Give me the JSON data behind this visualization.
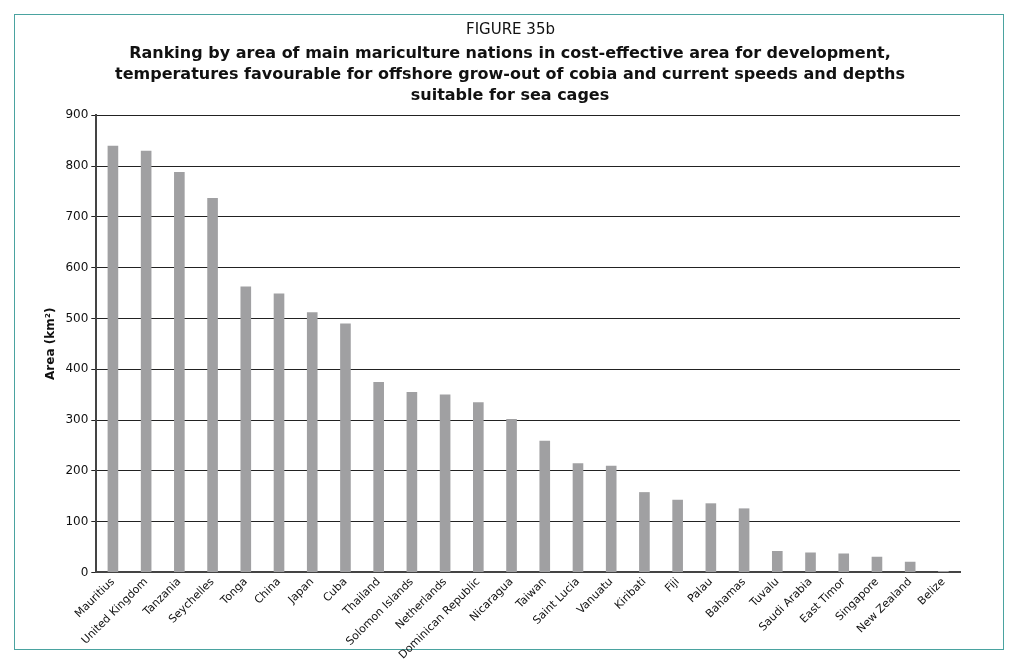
{
  "chart_data": {
    "type": "bar",
    "title": "FIGURE 35b",
    "subtitle": "Ranking by area of main mariculture nations in cost-effective area for development, temperatures favourable for offshore grow-out of cobia and current speeds and depths suitable for  sea cages",
    "ylabel": "Area (km²)",
    "categories": [
      "Mauritius",
      "United Kingdom",
      "Tanzania",
      "Seychelles",
      "Tonga",
      "China",
      "Japan",
      "Cuba",
      "Thailand",
      "Solomon Islands",
      "Netherlands",
      "Dominican Republic",
      "Nicaragua",
      "Taiwan",
      "Saint Lucia",
      "Vanuatu",
      "Kiribati",
      "Fiji",
      "Palau",
      "Bahamas",
      "Tuvalu",
      "Saudi Arabia",
      "East Timor",
      "Singapore",
      "New Zealand",
      "Belize"
    ],
    "values": [
      840,
      830,
      788,
      737,
      563,
      549,
      512,
      490,
      375,
      355,
      350,
      335,
      302,
      259,
      215,
      210,
      158,
      143,
      136,
      126,
      42,
      39,
      37,
      31,
      21,
      3
    ],
    "color": "#a0a0a2",
    "ylim": [
      0,
      900
    ],
    "yticks": [
      0,
      100,
      200,
      300,
      400,
      500,
      600,
      700,
      800,
      900
    ],
    "grid": "y"
  }
}
